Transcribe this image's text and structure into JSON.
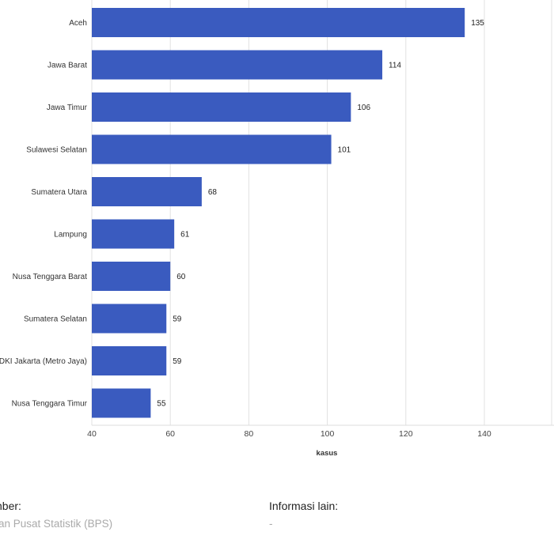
{
  "chart_data": {
    "type": "bar",
    "orientation": "horizontal",
    "categories": [
      "Aceh",
      "Jawa Barat",
      "Jawa Timur",
      "Sulawesi Selatan",
      "Sumatera Utara",
      "Lampung",
      "Nusa Tenggara Barat",
      "Sumatera Selatan",
      "DKI Jakarta (Metro Jaya)",
      "Nusa Tenggara Timur"
    ],
    "values": [
      135,
      114,
      106,
      101,
      68,
      61,
      60,
      59,
      59,
      55
    ],
    "xlabel": "kasus",
    "ylabel": "",
    "xlim": [
      40,
      160
    ],
    "xticks": [
      40,
      60,
      80,
      100,
      120,
      140
    ],
    "grid": true,
    "data_labels": true,
    "colors": {
      "bar": "#3a5bbf",
      "grid": "#e2e2e2"
    }
  },
  "footer": {
    "source_label": "Sumber:",
    "source_value": "Badan Pusat Statistik (BPS)",
    "info_label": "Informasi lain:",
    "info_value": "-"
  }
}
